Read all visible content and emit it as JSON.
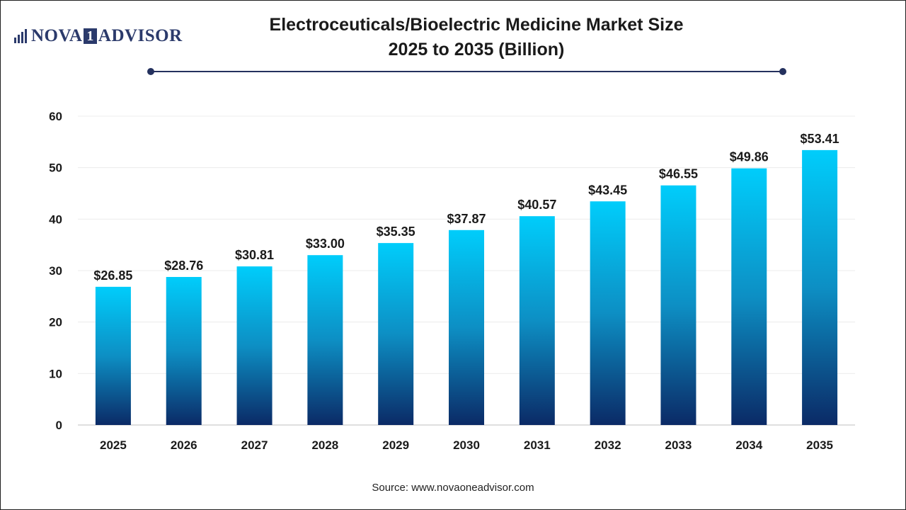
{
  "logo": {
    "part1": "NOVA",
    "part2": "1",
    "part3": "ADVISOR"
  },
  "title_line1": "Electroceuticals/Bioelectric Medicine Market Size",
  "title_line2": "2025 to 2035 (Billion)",
  "source": "Source: www.novaoneadvisor.com",
  "colors": {
    "bar_top": "#00cdfb",
    "bar_mid": "#0d8fc4",
    "bar_bottom": "#0b2a66",
    "accent": "#24315e"
  },
  "chart_data": {
    "type": "bar",
    "categories": [
      "2025",
      "2026",
      "2027",
      "2028",
      "2029",
      "2030",
      "2031",
      "2032",
      "2033",
      "2034",
      "2035"
    ],
    "values": [
      26.85,
      28.76,
      30.81,
      33.0,
      35.35,
      37.87,
      40.57,
      43.45,
      46.55,
      49.86,
      53.41
    ],
    "value_labels": [
      "$26.85",
      "$28.76",
      "$30.81",
      "$33.00",
      "$35.35",
      "$37.87",
      "$40.57",
      "$43.45",
      "$46.55",
      "$49.86",
      "$53.41"
    ],
    "yticks": [
      0,
      10,
      20,
      30,
      40,
      50,
      60
    ],
    "ylim": [
      0,
      60
    ],
    "xlabel": "",
    "ylabel": "",
    "grid": true,
    "legend": "none"
  }
}
